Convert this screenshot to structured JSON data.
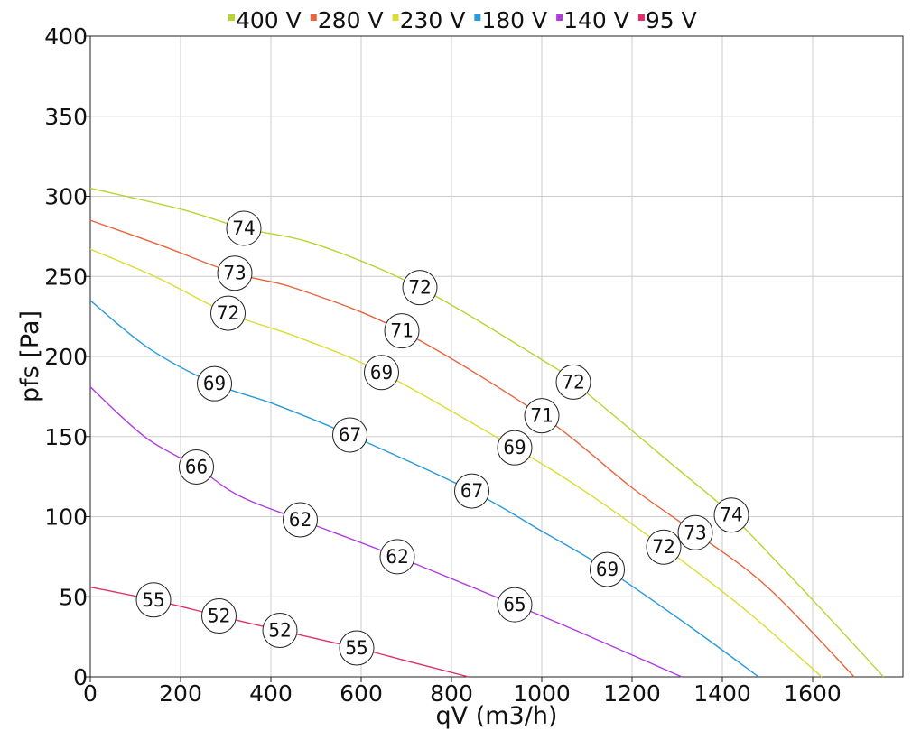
{
  "chart_data": {
    "type": "line",
    "xlabel": "qV (m3/h)",
    "ylabel": "pfs [Pa]",
    "xlim": [
      0,
      1800
    ],
    "ylim": [
      0,
      400
    ],
    "x_ticks": [
      0,
      200,
      400,
      600,
      800,
      1000,
      1200,
      1400,
      1600
    ],
    "y_ticks": [
      0,
      50,
      100,
      150,
      200,
      250,
      300,
      350,
      400
    ],
    "grid": true,
    "legend_position": "top",
    "series": [
      {
        "name": "400 V",
        "color": "#b8d430",
        "points": [
          [
            0,
            305
          ],
          [
            200,
            292
          ],
          [
            340,
            280
          ],
          [
            500,
            270
          ],
          [
            730,
            243
          ],
          [
            1000,
            198
          ],
          [
            1070,
            184
          ],
          [
            1300,
            130
          ],
          [
            1420,
            101
          ],
          [
            1600,
            48
          ],
          [
            1757,
            0
          ]
        ],
        "labels": [
          {
            "x": 340,
            "y": 280,
            "text": "74"
          },
          {
            "x": 730,
            "y": 243,
            "text": "72"
          },
          {
            "x": 1070,
            "y": 184,
            "text": "72"
          },
          {
            "x": 1420,
            "y": 101,
            "text": "74"
          }
        ]
      },
      {
        "name": "280 V",
        "color": "#e8643c",
        "points": [
          [
            0,
            285
          ],
          [
            150,
            270
          ],
          [
            320,
            252
          ],
          [
            460,
            242
          ],
          [
            690,
            216
          ],
          [
            1000,
            163
          ],
          [
            1200,
            118
          ],
          [
            1340,
            90
          ],
          [
            1500,
            56
          ],
          [
            1692,
            0
          ]
        ],
        "labels": [
          {
            "x": 320,
            "y": 252,
            "text": "73"
          },
          {
            "x": 690,
            "y": 216,
            "text": "71"
          },
          {
            "x": 1000,
            "y": 163,
            "text": "71"
          },
          {
            "x": 1340,
            "y": 90,
            "text": "73"
          }
        ]
      },
      {
        "name": "230 V",
        "color": "#dcdc32",
        "points": [
          [
            0,
            267
          ],
          [
            150,
            249
          ],
          [
            305,
            227
          ],
          [
            460,
            212
          ],
          [
            645,
            190
          ],
          [
            940,
            143
          ],
          [
            1100,
            115
          ],
          [
            1270,
            81
          ],
          [
            1450,
            42
          ],
          [
            1620,
            0
          ]
        ],
        "labels": [
          {
            "x": 305,
            "y": 227,
            "text": "72"
          },
          {
            "x": 645,
            "y": 190,
            "text": "69"
          },
          {
            "x": 940,
            "y": 143,
            "text": "69"
          },
          {
            "x": 1270,
            "y": 81,
            "text": "72"
          }
        ]
      },
      {
        "name": "180 V",
        "color": "#2a9ad8",
        "points": [
          [
            0,
            235
          ],
          [
            130,
            205
          ],
          [
            275,
            183
          ],
          [
            410,
            170
          ],
          [
            575,
            151
          ],
          [
            845,
            116
          ],
          [
            1000,
            91
          ],
          [
            1145,
            67
          ],
          [
            1330,
            31
          ],
          [
            1480,
            0
          ]
        ],
        "labels": [
          {
            "x": 275,
            "y": 183,
            "text": "69"
          },
          {
            "x": 575,
            "y": 151,
            "text": "67"
          },
          {
            "x": 845,
            "y": 116,
            "text": "67"
          },
          {
            "x": 1145,
            "y": 67,
            "text": "69"
          }
        ]
      },
      {
        "name": "140 V",
        "color": "#b03ce0",
        "points": [
          [
            0,
            181
          ],
          [
            120,
            150
          ],
          [
            235,
            131
          ],
          [
            330,
            113
          ],
          [
            465,
            98
          ],
          [
            680,
            75
          ],
          [
            940,
            45
          ],
          [
            1100,
            26
          ],
          [
            1310,
            0
          ]
        ],
        "labels": [
          {
            "x": 235,
            "y": 131,
            "text": "66"
          },
          {
            "x": 465,
            "y": 98,
            "text": "62"
          },
          {
            "x": 680,
            "y": 75,
            "text": "62"
          },
          {
            "x": 940,
            "y": 45,
            "text": "65"
          }
        ]
      },
      {
        "name": "95 V",
        "color": "#e0306a",
        "points": [
          [
            0,
            56
          ],
          [
            140,
            48
          ],
          [
            285,
            38
          ],
          [
            420,
            29
          ],
          [
            590,
            18
          ],
          [
            700,
            10
          ],
          [
            838,
            0
          ]
        ],
        "labels": [
          {
            "x": 140,
            "y": 48,
            "text": "55"
          },
          {
            "x": 285,
            "y": 38,
            "text": "52"
          },
          {
            "x": 420,
            "y": 29,
            "text": "52"
          },
          {
            "x": 590,
            "y": 18,
            "text": "55"
          }
        ]
      }
    ]
  }
}
